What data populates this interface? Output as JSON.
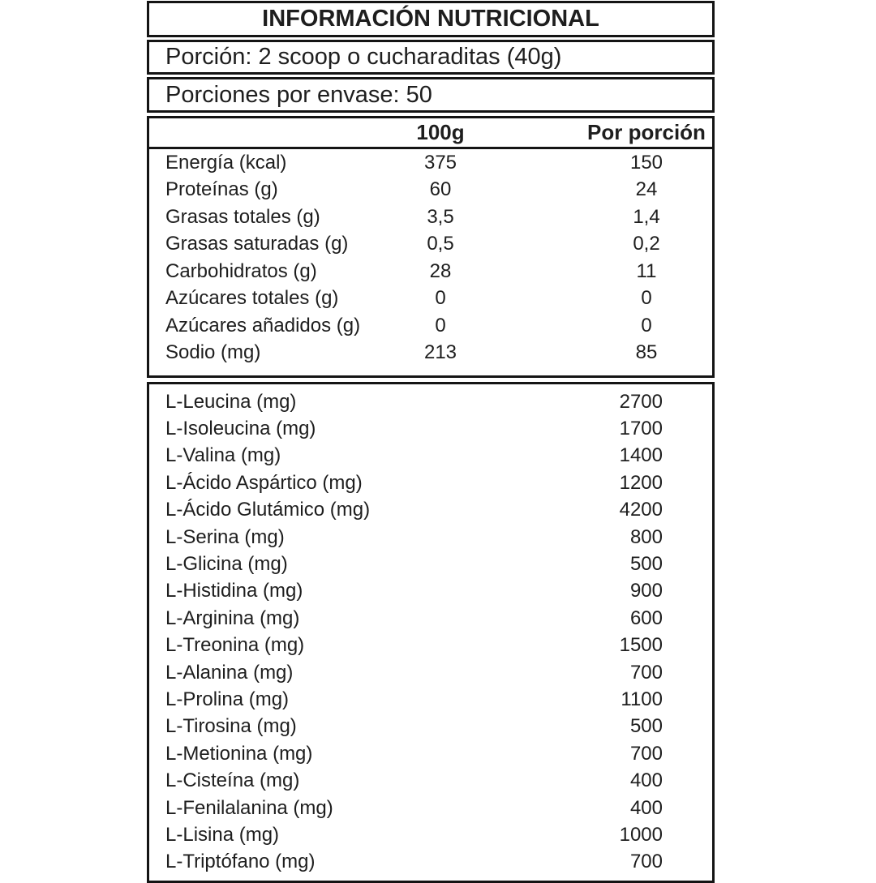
{
  "page": {
    "background": "#ffffff",
    "text_color": "#1e1e1e",
    "border_color": "#141414"
  },
  "header": {
    "title": "INFORMACIÓN NUTRICIONAL"
  },
  "serving": {
    "portion_line": "Porción: 2 scoop o cucharaditas (40g)",
    "servings_per_container_line": "Porciones por envase: 50"
  },
  "nutrition_table": {
    "columns": {
      "per_100g": "100g",
      "per_portion": "Por porción"
    },
    "rows": [
      {
        "name": "Energía (kcal)",
        "per_100g": "375",
        "per_portion": "150"
      },
      {
        "name": "Proteínas (g)",
        "per_100g": "60",
        "per_portion": "24"
      },
      {
        "name": "Grasas totales (g)",
        "per_100g": "3,5",
        "per_portion": "1,4"
      },
      {
        "name": "Grasas saturadas (g)",
        "per_100g": "0,5",
        "per_portion": "0,2"
      },
      {
        "name": "Carbohidratos (g)",
        "per_100g": "28",
        "per_portion": "11"
      },
      {
        "name": "Azúcares totales (g)",
        "per_100g": "0",
        "per_portion": "0"
      },
      {
        "name": "Azúcares añadidos (g)",
        "per_100g": "0",
        "per_portion": "0"
      },
      {
        "name": "Sodio (mg)",
        "per_100g": "213",
        "per_portion": "85"
      }
    ]
  },
  "amino_acids_table": {
    "rows": [
      {
        "name": "L-Leucina (mg)",
        "per_portion": "2700"
      },
      {
        "name": "L-Isoleucina (mg)",
        "per_portion": "1700"
      },
      {
        "name": "L-Valina (mg)",
        "per_portion": "1400"
      },
      {
        "name": "L-Ácido Aspártico (mg)",
        "per_portion": "1200"
      },
      {
        "name": "L-Ácido Glutámico (mg)",
        "per_portion": "4200"
      },
      {
        "name": "L-Serina (mg)",
        "per_portion": "800"
      },
      {
        "name": "L-Glicina (mg)",
        "per_portion": "500"
      },
      {
        "name": "L-Histidina (mg)",
        "per_portion": "900"
      },
      {
        "name": "L-Arginina (mg)",
        "per_portion": "600"
      },
      {
        "name": "L-Treonina (mg)",
        "per_portion": "1500"
      },
      {
        "name": "L-Alanina (mg)",
        "per_portion": "700"
      },
      {
        "name": "L-Prolina (mg)",
        "per_portion": "1100"
      },
      {
        "name": "L-Tirosina (mg)",
        "per_portion": "500"
      },
      {
        "name": "L-Metionina (mg)",
        "per_portion": "700"
      },
      {
        "name": "L-Cisteína (mg)",
        "per_portion": "400"
      },
      {
        "name": "L-Fenilalanina (mg)",
        "per_portion": "400"
      },
      {
        "name": "L-Lisina (mg)",
        "per_portion": "1000"
      },
      {
        "name": "L-Triptófano (mg)",
        "per_portion": "700"
      }
    ]
  }
}
